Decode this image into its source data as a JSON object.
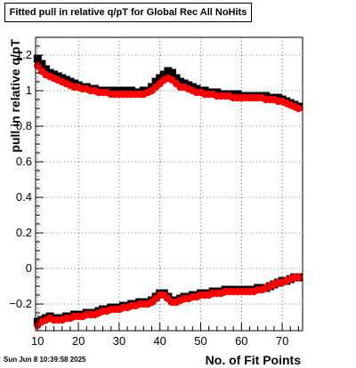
{
  "chart_data": {
    "type": "scatter",
    "title": "Fitted pull in relative q/pT for Global Rec All NoHits",
    "xlabel": "No. of Fit Points",
    "ylabel": "pull in relative q/pT",
    "xlim": [
      9.5,
      75
    ],
    "ylim": [
      -0.35,
      1.3
    ],
    "xticks": [
      10,
      20,
      30,
      40,
      50,
      60,
      70
    ],
    "yticks": [
      -0.2,
      0,
      0.2,
      0.4,
      0.6,
      0.8,
      1,
      1.2
    ],
    "ytick_labels": [
      "−0.2",
      "0",
      "0.2",
      "0.4",
      "0.6",
      "0.8",
      "1",
      "1.2"
    ],
    "grid": true,
    "footer": "Sun Jun  8 10:39:58 2025",
    "series": [
      {
        "color": "#000000",
        "x": [
          10,
          11,
          12,
          13,
          14,
          15,
          16,
          17,
          18,
          19,
          20,
          21,
          22,
          23,
          24,
          25,
          26,
          27,
          28,
          29,
          30,
          31,
          32,
          33,
          34,
          35,
          36,
          37,
          38,
          39,
          40,
          41,
          42,
          43,
          44,
          45,
          46,
          47,
          48,
          49,
          50,
          51,
          52,
          53,
          54,
          55,
          56,
          57,
          58,
          59,
          60,
          61,
          62,
          63,
          64,
          65,
          66,
          67,
          68,
          69,
          70,
          71,
          72,
          73,
          74
        ],
        "y": [
          1.18,
          1.15,
          1.12,
          1.1,
          1.09,
          1.08,
          1.07,
          1.06,
          1.05,
          1.04,
          1.03,
          1.02,
          1.02,
          1.01,
          1.01,
          1.0,
          1.0,
          1.0,
          1.0,
          1.0,
          1.0,
          1.0,
          1.0,
          1.0,
          0.99,
          0.99,
          1.0,
          1.0,
          1.02,
          1.05,
          1.07,
          1.09,
          1.11,
          1.1,
          1.07,
          1.05,
          1.04,
          1.03,
          1.02,
          1.01,
          1.0,
          1.0,
          0.99,
          0.99,
          0.99,
          0.98,
          0.98,
          0.98,
          0.98,
          0.98,
          0.97,
          0.97,
          0.97,
          0.97,
          0.97,
          0.97,
          0.97,
          0.96,
          0.96,
          0.96,
          0.95,
          0.94,
          0.93,
          0.92,
          0.91
        ]
      },
      {
        "color": "#ff0000",
        "x": [
          10,
          11,
          12,
          13,
          14,
          15,
          16,
          17,
          18,
          19,
          20,
          21,
          22,
          23,
          24,
          25,
          26,
          27,
          28,
          29,
          30,
          31,
          32,
          33,
          34,
          35,
          36,
          37,
          38,
          39,
          40,
          41,
          42,
          43,
          44,
          45,
          46,
          47,
          48,
          49,
          50,
          51,
          52,
          53,
          54,
          55,
          56,
          57,
          58,
          59,
          60,
          61,
          62,
          63,
          64,
          65,
          66,
          67,
          68,
          69,
          70,
          71,
          72,
          73,
          74
        ],
        "y": [
          1.14,
          1.11,
          1.09,
          1.08,
          1.07,
          1.06,
          1.05,
          1.04,
          1.03,
          1.02,
          1.02,
          1.01,
          1.01,
          1.0,
          1.0,
          0.99,
          0.99,
          0.99,
          0.98,
          0.98,
          0.98,
          0.98,
          0.98,
          0.98,
          0.98,
          0.98,
          0.98,
          0.99,
          1.0,
          1.02,
          1.04,
          1.06,
          1.07,
          1.06,
          1.04,
          1.02,
          1.02,
          1.01,
          1.0,
          0.99,
          0.99,
          0.98,
          0.98,
          0.98,
          0.97,
          0.97,
          0.97,
          0.97,
          0.96,
          0.96,
          0.96,
          0.96,
          0.96,
          0.96,
          0.96,
          0.96,
          0.95,
          0.95,
          0.95,
          0.94,
          0.94,
          0.93,
          0.92,
          0.91,
          0.9
        ]
      },
      {
        "color": "#000000",
        "x": [
          10,
          11,
          12,
          13,
          14,
          15,
          16,
          17,
          18,
          19,
          20,
          21,
          22,
          23,
          24,
          25,
          26,
          27,
          28,
          29,
          30,
          31,
          32,
          33,
          34,
          35,
          36,
          37,
          38,
          39,
          40,
          41,
          42,
          43,
          44,
          45,
          46,
          47,
          48,
          49,
          50,
          51,
          52,
          53,
          54,
          55,
          56,
          57,
          58,
          59,
          60,
          61,
          62,
          63,
          64,
          65,
          66,
          67,
          68,
          69,
          70,
          71,
          72,
          73,
          74
        ],
        "y": [
          -0.3,
          -0.29,
          -0.28,
          -0.27,
          -0.28,
          -0.28,
          -0.28,
          -0.27,
          -0.27,
          -0.26,
          -0.26,
          -0.26,
          -0.25,
          -0.25,
          -0.25,
          -0.24,
          -0.23,
          -0.23,
          -0.22,
          -0.22,
          -0.22,
          -0.21,
          -0.21,
          -0.2,
          -0.2,
          -0.19,
          -0.19,
          -0.19,
          -0.18,
          -0.16,
          -0.14,
          -0.14,
          -0.16,
          -0.18,
          -0.18,
          -0.17,
          -0.16,
          -0.16,
          -0.15,
          -0.15,
          -0.14,
          -0.14,
          -0.14,
          -0.13,
          -0.13,
          -0.13,
          -0.12,
          -0.12,
          -0.12,
          -0.12,
          -0.12,
          -0.12,
          -0.12,
          -0.12,
          -0.11,
          -0.11,
          -0.11,
          -0.1,
          -0.09,
          -0.08,
          -0.07,
          -0.07,
          -0.06,
          -0.05,
          -0.05
        ]
      },
      {
        "color": "#ff0000",
        "x": [
          10,
          11,
          12,
          13,
          14,
          15,
          16,
          17,
          18,
          19,
          20,
          21,
          22,
          23,
          24,
          25,
          26,
          27,
          28,
          29,
          30,
          31,
          32,
          33,
          34,
          35,
          36,
          37,
          38,
          39,
          40,
          41,
          42,
          43,
          44,
          45,
          46,
          47,
          48,
          49,
          50,
          51,
          52,
          53,
          54,
          55,
          56,
          57,
          58,
          59,
          60,
          61,
          62,
          63,
          64,
          65,
          66,
          67,
          68,
          69,
          70,
          71,
          72,
          73,
          74
        ],
        "y": [
          -0.32,
          -0.3,
          -0.29,
          -0.28,
          -0.29,
          -0.29,
          -0.29,
          -0.28,
          -0.28,
          -0.27,
          -0.27,
          -0.27,
          -0.26,
          -0.26,
          -0.26,
          -0.25,
          -0.24,
          -0.24,
          -0.23,
          -0.23,
          -0.23,
          -0.22,
          -0.22,
          -0.21,
          -0.21,
          -0.2,
          -0.2,
          -0.2,
          -0.19,
          -0.17,
          -0.15,
          -0.15,
          -0.17,
          -0.19,
          -0.19,
          -0.18,
          -0.17,
          -0.17,
          -0.16,
          -0.16,
          -0.15,
          -0.15,
          -0.15,
          -0.14,
          -0.14,
          -0.14,
          -0.13,
          -0.13,
          -0.13,
          -0.13,
          -0.13,
          -0.13,
          -0.13,
          -0.13,
          -0.12,
          -0.12,
          -0.11,
          -0.1,
          -0.09,
          -0.08,
          -0.08,
          -0.07,
          -0.06,
          -0.05,
          -0.05
        ]
      }
    ]
  }
}
